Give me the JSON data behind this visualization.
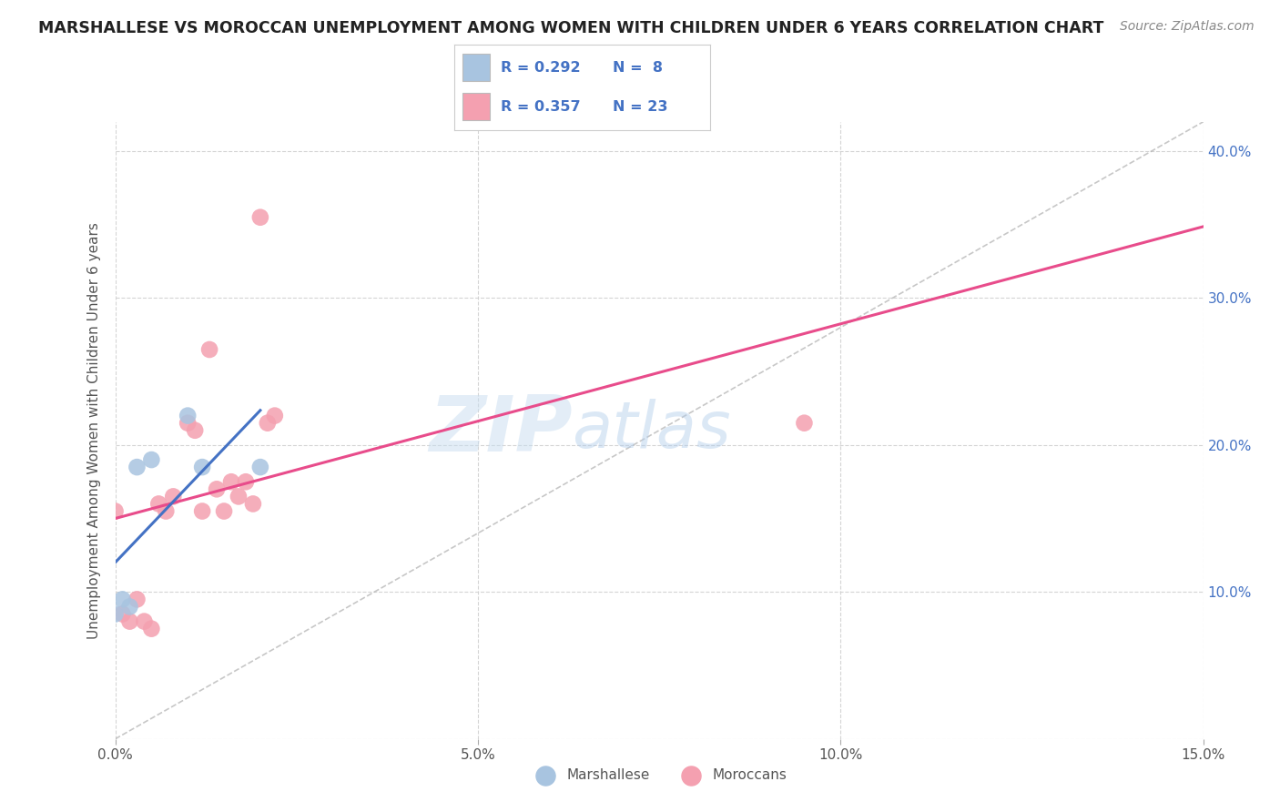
{
  "title": "MARSHALLESE VS MOROCCAN UNEMPLOYMENT AMONG WOMEN WITH CHILDREN UNDER 6 YEARS CORRELATION CHART",
  "source": "Source: ZipAtlas.com",
  "ylabel": "Unemployment Among Women with Children Under 6 years",
  "xlim": [
    0.0,
    0.15
  ],
  "ylim": [
    0.0,
    0.42
  ],
  "xticks": [
    0.0,
    0.05,
    0.1,
    0.15
  ],
  "xticklabels": [
    "0.0%",
    "5.0%",
    "10.0%",
    "15.0%"
  ],
  "yticks": [
    0.0,
    0.1,
    0.2,
    0.3,
    0.4
  ],
  "yticklabels_right": [
    "",
    "10.0%",
    "20.0%",
    "30.0%",
    "40.0%"
  ],
  "marshallese_x": [
    0.0,
    0.001,
    0.002,
    0.003,
    0.005,
    0.01,
    0.012,
    0.02
  ],
  "marshallese_y": [
    0.085,
    0.095,
    0.09,
    0.185,
    0.19,
    0.22,
    0.185,
    0.185
  ],
  "moroccan_x": [
    0.0,
    0.001,
    0.002,
    0.003,
    0.004,
    0.005,
    0.006,
    0.007,
    0.008,
    0.01,
    0.011,
    0.012,
    0.013,
    0.014,
    0.015,
    0.016,
    0.017,
    0.018,
    0.019,
    0.02,
    0.021,
    0.022,
    0.095
  ],
  "moroccan_y": [
    0.155,
    0.085,
    0.08,
    0.095,
    0.08,
    0.075,
    0.16,
    0.155,
    0.165,
    0.215,
    0.21,
    0.155,
    0.265,
    0.17,
    0.155,
    0.175,
    0.165,
    0.175,
    0.16,
    0.355,
    0.215,
    0.22,
    0.215
  ],
  "marshallese_color": "#a8c4e0",
  "moroccan_color": "#f4a0b0",
  "marshallese_line_color": "#4472c4",
  "moroccan_line_color": "#e84c8b",
  "diag_line_color": "#b0b0b0",
  "R_marshallese": 0.292,
  "N_marshallese": 8,
  "R_moroccan": 0.357,
  "N_moroccan": 23,
  "legend_label_marshallese": "Marshallese",
  "legend_label_moroccan": "Moroccans",
  "watermark_zip": "ZIP",
  "watermark_atlas": "atlas",
  "background_color": "#ffffff",
  "grid_color": "#d0d0d0"
}
